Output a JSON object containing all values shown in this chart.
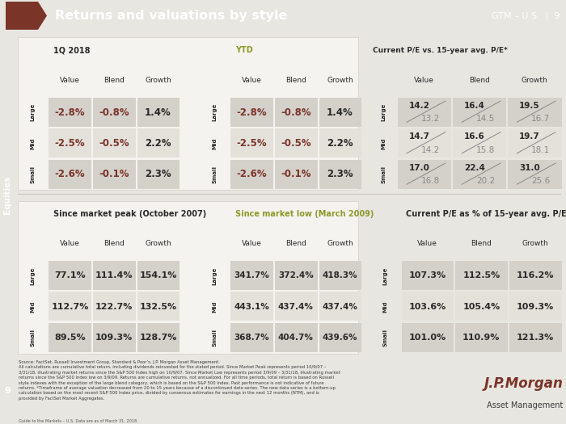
{
  "title": "Returns and valuations by style",
  "gtm_label": "GTM – U.S.  |  9",
  "bg_color": "#e8e6e1",
  "header_bg": "#6b6560",
  "header_text_color": "#ffffff",
  "equities_color": "#717d3e",
  "accent_color": "#7b3428",
  "table1_title": "1Q 2018",
  "table2_title": "YTD",
  "table3_title": "Current P/E vs. 15-year avg. P/E*",
  "table4_title": "Since market peak (October 2007)",
  "table5_title": "Since market low (March 2009)",
  "table6_title": "Current P/E as % of 15-year avg. P/E*",
  "col_headers": [
    "Value",
    "Blend",
    "Growth"
  ],
  "row_headers": [
    "Large",
    "Mid",
    "Small"
  ],
  "t1_data": [
    [
      "-2.8%",
      "-0.8%",
      "1.4%"
    ],
    [
      "-2.5%",
      "-0.5%",
      "2.2%"
    ],
    [
      "-2.6%",
      "-0.1%",
      "2.3%"
    ]
  ],
  "t2_data": [
    [
      "-2.8%",
      "-0.8%",
      "1.4%"
    ],
    [
      "-2.5%",
      "-0.5%",
      "2.2%"
    ],
    [
      "-2.6%",
      "-0.1%",
      "2.3%"
    ]
  ],
  "t4_data": [
    [
      "77.1%",
      "111.4%",
      "154.1%"
    ],
    [
      "112.7%",
      "122.7%",
      "132.5%"
    ],
    [
      "89.5%",
      "109.3%",
      "128.7%"
    ]
  ],
  "t5_data": [
    [
      "341.7%",
      "372.4%",
      "418.3%"
    ],
    [
      "443.1%",
      "437.4%",
      "437.4%"
    ],
    [
      "368.7%",
      "404.7%",
      "439.6%"
    ]
  ],
  "t3_data_top": [
    [
      "14.2",
      "16.4",
      "19.5"
    ],
    [
      "14.7",
      "16.6",
      "19.7"
    ],
    [
      "17.0",
      "22.4",
      "31.0"
    ]
  ],
  "t3_data_bot": [
    [
      "13.2",
      "14.5",
      "16.7"
    ],
    [
      "14.2",
      "15.8",
      "18.1"
    ],
    [
      "16.8",
      "20.2",
      "25.6"
    ]
  ],
  "t6_data": [
    [
      "107.3%",
      "112.5%",
      "116.2%"
    ],
    [
      "103.6%",
      "105.4%",
      "109.3%"
    ],
    [
      "101.0%",
      "110.9%",
      "121.3%"
    ]
  ],
  "cell_bg_a": "#d4d1cb",
  "cell_bg_b": "#e4e1db",
  "panel_bg": "#f0eeea",
  "right_panel_bg": "#eae8e3",
  "ytd_color": "#8b9a2a",
  "low_color": "#8b9a2a",
  "neg_color": "#7b3428",
  "pos_color": "#2a2a2a",
  "source_text": "Source: FactSet, Russell Investment Group, Standard & Poor’s, J.P. Morgan Asset Management.\nAll calculations are cumulative total return, including dividends reinvested for the stated period. Since Market Peak represents period 10/9/07 –\n3/31/18, illustrating market returns since the S&P 500 Index high on 10/9/07. Since Market Low represents period 3/9/09 – 3/31/18, illustrating market\nreturns since the S&P 500 Index low on 3/9/09. Returns are cumulative returns, not annualized. For all time periods, total return is based on Russell\nstyle indexes with the exception of the large blend category, which is based on the S&P 500 Index. Past performance is not indicative of future\nreturns. *Timeframe of average valuation decreased from 20 to 15 years because of a discontinued data series. The new data series is a bottom-up\ncalculation based on the most recent S&P 500 Index price, divided by consensus estimates for earnings in the next 12 months (NTM), and is\nprovided by FactSet Market Aggregates.",
  "guide_text": "Guide to the Markets – U.S. Data are as of March 31, 2018.",
  "page_num": "9"
}
